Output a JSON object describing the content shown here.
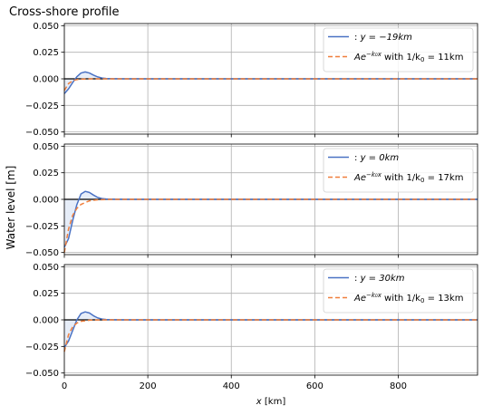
{
  "chart_data": {
    "type": "line",
    "title": "Cross-shore profile",
    "ylabel": "Water level [m]",
    "xlabel": "x [km]",
    "xlim": [
      0,
      990
    ],
    "ylim": [
      -0.052,
      0.052
    ],
    "x_ticks": [
      0,
      200,
      400,
      600,
      800
    ],
    "x_tick_labels": [
      "0",
      "200",
      "400",
      "600",
      "800"
    ],
    "y_ticks": [
      -0.05,
      -0.025,
      0.0,
      0.025,
      0.05
    ],
    "y_tick_labels": [
      "−0.050",
      "−0.025",
      "0.000",
      "0.025",
      "0.050"
    ],
    "grid": true,
    "legend_position": "top-right",
    "colors": {
      "model": "#4a72c4",
      "fit": "#f07f3c",
      "fill": "#dce6f5",
      "zero": "#000000"
    },
    "panels": [
      {
        "series": [
          {
            "name": ": y = −19km",
            "style": "solid",
            "x": [
              0,
              10,
              20,
              30,
              40,
              50,
              60,
              70,
              80,
              90,
              100,
              120,
              150,
              200,
              400,
              990
            ],
            "values": [
              -0.014,
              -0.0095,
              -0.0035,
              0.002,
              0.0055,
              0.0065,
              0.0055,
              0.0035,
              0.0018,
              0.0008,
              0.0003,
              0.0001,
              0.0,
              0.0,
              0.0,
              0.0
            ]
          },
          {
            "name": "A e^{-k0 x} with 1/k0 = 11km",
            "style": "dashed",
            "x": [
              0,
              10,
              20,
              30,
              40,
              60,
              80,
              120,
              200,
              990
            ],
            "values": [
              -0.011,
              -0.0045,
              -0.0018,
              -0.0007,
              -0.0003,
              -5e-05,
              0.0,
              0.0,
              0.0,
              0.0
            ]
          }
        ],
        "legend": [
          {
            "prefix": ": ",
            "math": "y = −19km"
          },
          {
            "lead": "Ae",
            "sup": "−k₀x",
            "mid": " with 1/k",
            "sub": "0",
            "tail": " = 11km"
          }
        ]
      },
      {
        "series": [
          {
            "name": ": y = 0km",
            "style": "solid",
            "x": [
              0,
              10,
              20,
              30,
              40,
              50,
              60,
              70,
              80,
              90,
              100,
              120,
              150,
              200,
              400,
              990
            ],
            "values": [
              -0.045,
              -0.037,
              -0.02,
              -0.005,
              0.005,
              0.0075,
              0.0065,
              0.004,
              0.0018,
              0.0008,
              0.0003,
              0.0001,
              0.0,
              0.0,
              0.0,
              0.0
            ]
          },
          {
            "name": "A e^{-k0 x} with 1/k0 = 17km",
            "style": "dashed",
            "x": [
              0,
              10,
              20,
              30,
              40,
              60,
              80,
              120,
              200,
              990
            ],
            "values": [
              -0.05,
              -0.028,
              -0.015,
              -0.0085,
              -0.0047,
              -0.0014,
              -0.0004,
              0.0,
              0.0,
              0.0
            ]
          }
        ],
        "legend": [
          {
            "prefix": ": ",
            "math": "y = 0km"
          },
          {
            "lead": "Ae",
            "sup": "−k₀x",
            "mid": " with 1/k",
            "sub": "0",
            "tail": " = 17km"
          }
        ]
      },
      {
        "series": [
          {
            "name": ": y = 30km",
            "style": "solid",
            "x": [
              0,
              10,
              20,
              30,
              40,
              50,
              60,
              70,
              80,
              90,
              100,
              120,
              150,
              200,
              400,
              990
            ],
            "values": [
              -0.026,
              -0.02,
              -0.01,
              0.0,
              0.006,
              0.0075,
              0.0065,
              0.0038,
              0.0018,
              0.0008,
              0.0003,
              0.0001,
              0.0,
              0.0,
              0.0,
              0.0
            ]
          },
          {
            "name": "A e^{-k0 x} with 1/k0 = 13km",
            "style": "dashed",
            "x": [
              0,
              10,
              20,
              30,
              40,
              60,
              80,
              120,
              200,
              990
            ],
            "values": [
              -0.03,
              -0.014,
              -0.0065,
              -0.003,
              -0.0014,
              -0.0003,
              -7e-05,
              0.0,
              0.0,
              0.0
            ]
          }
        ],
        "legend": [
          {
            "prefix": ": ",
            "math": "y = 30km"
          },
          {
            "lead": "Ae",
            "sup": "−k₀x",
            "mid": " with 1/k",
            "sub": "0",
            "tail": " = 13km"
          }
        ]
      }
    ]
  }
}
